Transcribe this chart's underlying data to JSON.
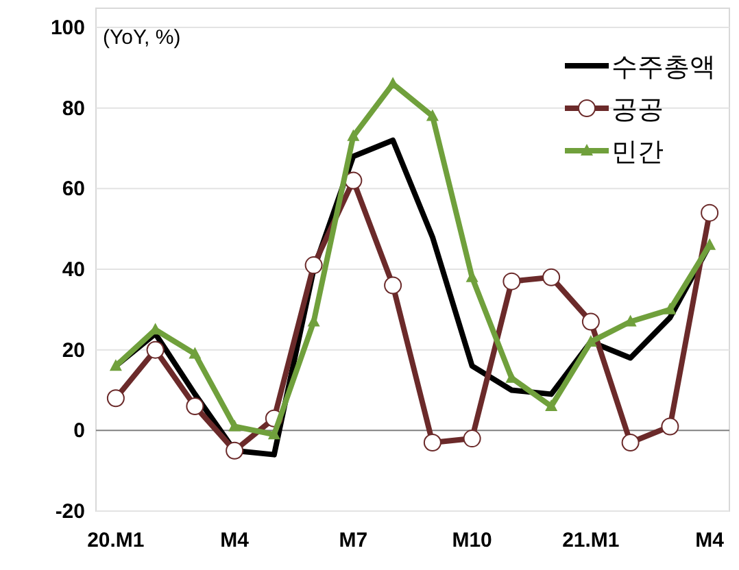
{
  "chart_data": {
    "type": "line",
    "ylabel": "(YoY, %)",
    "categories": [
      "20.M1",
      null,
      null,
      "M4",
      null,
      null,
      "M7",
      null,
      null,
      "M10",
      null,
      null,
      "21.M1",
      null,
      null,
      "M4"
    ],
    "series": [
      {
        "name": "수주총액",
        "color": "#000000",
        "marker": "none",
        "values": [
          16,
          24,
          9,
          -5,
          -6,
          40,
          68,
          72,
          48,
          16,
          10,
          9,
          22,
          18,
          28,
          46
        ]
      },
      {
        "name": "공공",
        "color": "#6b2a2a",
        "marker": "circle",
        "values": [
          8,
          20,
          6,
          -5,
          3,
          41,
          62,
          36,
          -3,
          -2,
          37,
          38,
          27,
          -3,
          1,
          54
        ]
      },
      {
        "name": "민간",
        "color": "#70a03c",
        "marker": "triangle",
        "values": [
          16,
          25,
          19,
          1,
          -1,
          27,
          73,
          86,
          78,
          38,
          13,
          6,
          22,
          27,
          30,
          46
        ]
      }
    ],
    "ylim": [
      -20,
      100
    ],
    "yticks": [
      -20,
      0,
      20,
      40,
      60,
      80,
      100
    ],
    "grid": "y",
    "legend": "top right"
  }
}
